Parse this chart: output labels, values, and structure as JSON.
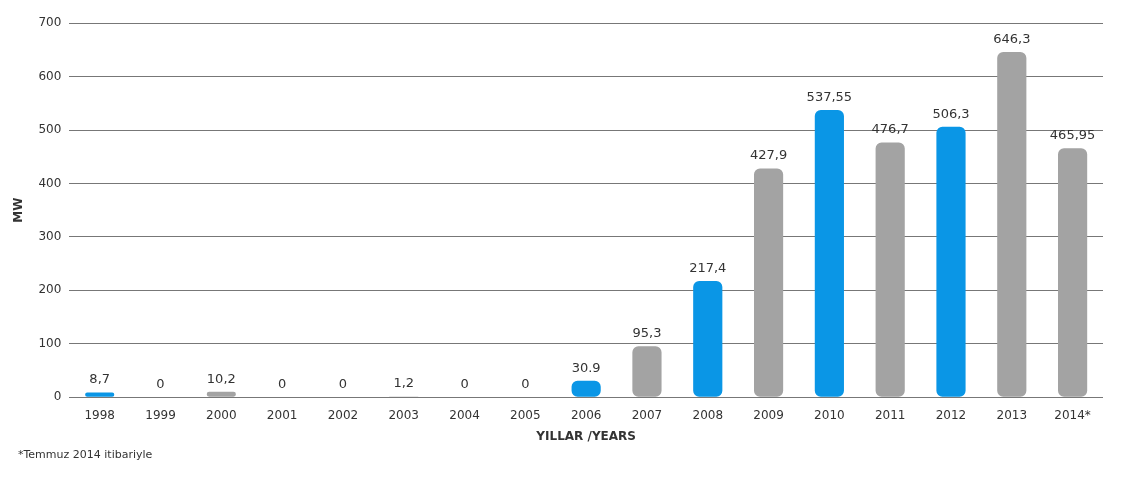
{
  "chart_data": {
    "type": "bar",
    "xlabel": "YILLAR /YEARS",
    "ylabel": "MW",
    "categories": [
      "1998",
      "1999",
      "2000",
      "2001",
      "2002",
      "2003",
      "2004",
      "2005",
      "2006",
      "2007",
      "2008",
      "2009",
      "2010",
      "2011",
      "2012",
      "2013",
      "2014*"
    ],
    "values": [
      8.7,
      0,
      10.2,
      0,
      0,
      1.2,
      0,
      0,
      30.9,
      95.3,
      217.4,
      427.9,
      537.55,
      476.7,
      506.3,
      646.3,
      465.95
    ],
    "colors": [
      "#0a96e6",
      "#a3a3a3",
      "#a3a3a3",
      "#a3a3a3",
      "#a3a3a3",
      "#a3a3a3",
      "#a3a3a3",
      "#a3a3a3",
      "#0a96e6",
      "#a3a3a3",
      "#0a96e6",
      "#a3a3a3",
      "#0a96e6",
      "#a3a3a3",
      "#0a96e6",
      "#a3a3a3",
      "#a3a3a3"
    ],
    "value_labels": [
      "8,7",
      "0",
      "10,2",
      "0",
      "0",
      "1,2",
      "0",
      "0",
      "30.9",
      "95,3",
      "217,4",
      "427,9",
      "537,55",
      "476,7",
      "506,3",
      "646,3",
      "465,95"
    ],
    "ylim": [
      0,
      700
    ],
    "yticks": [
      0,
      100,
      200,
      300,
      400,
      500,
      600,
      700
    ],
    "grid": "y",
    "legend": false,
    "annotations": [
      "*Temmuz 2014 itibariyle"
    ]
  }
}
